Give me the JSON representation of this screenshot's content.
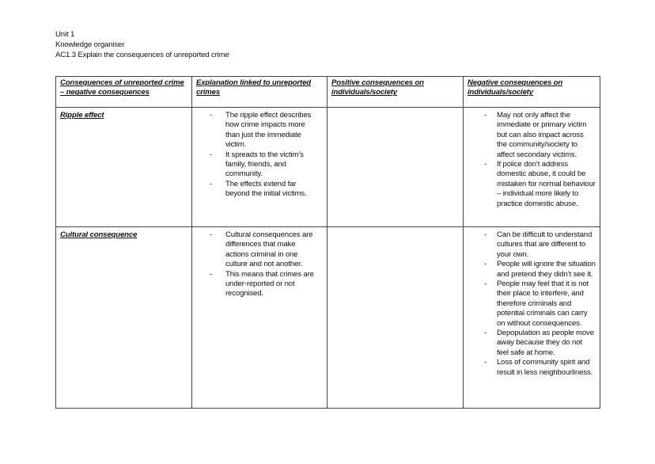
{
  "header": {
    "unit": "Unit 1",
    "subtitle": "Knowledge organiser",
    "objective": "AC1.3 Explain the consequences of unreported crime"
  },
  "table": {
    "columns": [
      "Consequences of unreported crime – negative consequences",
      "Explanation linked to unreported crimes",
      "Positive consequences on individuals/society",
      "Negative consequences on individuals/society"
    ],
    "rows": [
      {
        "consequence": "Ripple effect",
        "explanation": [
          "The ripple effect describes how crime impacts more than just the immediate victim.",
          "It spreads to the victim’s family, friends, and community.",
          "The effects extend far beyond the initial victims."
        ],
        "positive": [],
        "negative": [
          "May not only affect the immediate or primary victim but can also impact across the community/society to affect secondary victims.",
          "If police don’t address domestic abuse, it could be mistaken for normal behaviour – individual more likely to practice domestic abuse."
        ]
      },
      {
        "consequence": "Cultural consequence",
        "explanation": [
          "Cultural consequences are differences that make actions criminal in one culture and not another.",
          "This means that crimes are under-reported or not recognised."
        ],
        "positive": [],
        "negative": [
          "Can be difficult to understand cultures that are different to your own.",
          "People will ignore the situation and pretend they didn’t see it.",
          "People may feel that it is not their place to interfere, and therefore criminals and potential criminals can carry on without consequences.",
          "Depopulation as people move away because they do not feel safe at home.",
          "Loss of community spirit and result in less neighbourliness."
        ]
      }
    ],
    "bullet": "-"
  }
}
